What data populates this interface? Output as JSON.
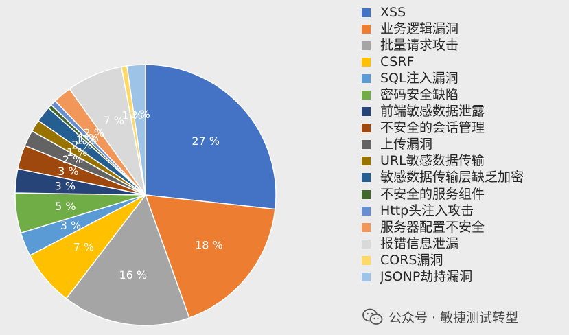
{
  "chart_data": {
    "type": "pie",
    "title": "",
    "legend_position": "right",
    "slices": [
      {
        "label": "XSS",
        "value": 27,
        "data_label": "27 %",
        "color": "#4472c4"
      },
      {
        "label": "业务逻辑漏洞",
        "value": 18,
        "data_label": "18 %",
        "color": "#ed7d31"
      },
      {
        "label": "批量请求攻击",
        "value": 16,
        "data_label": "16 %",
        "color": "#a5a5a5"
      },
      {
        "label": "CSRF",
        "value": 7,
        "data_label": "7 %",
        "color": "#ffc000"
      },
      {
        "label": "SQL注入漏洞",
        "value": 3,
        "data_label": "3 %",
        "color": "#5b9bd5"
      },
      {
        "label": "密码安全缺陷",
        "value": 5,
        "data_label": "5 %",
        "color": "#70ad47"
      },
      {
        "label": "前端敏感数据泄露",
        "value": 3,
        "data_label": "3 %",
        "color": "#264478"
      },
      {
        "label": "不安全的会话管理",
        "value": 3,
        "data_label": "3 %",
        "color": "#9e480e"
      },
      {
        "label": "上传漏洞",
        "value": 2,
        "data_label": "2 %",
        "color": "#636363"
      },
      {
        "label": "URL敏感数据传输",
        "value": 1.5,
        "data_label": "1 %",
        "color": "#997300"
      },
      {
        "label": "敏感数据传输层缺乏加密",
        "value": 2,
        "data_label": "2 %",
        "color": "#255e91"
      },
      {
        "label": "不安全的服务组件",
        "value": 0.5,
        "data_label": "1 %",
        "color": "#43682b"
      },
      {
        "label": "Http头注入攻击",
        "value": 0.7,
        "data_label": "1 %",
        "color": "#698ed0"
      },
      {
        "label": "服务器配置不安全",
        "value": 2.3,
        "data_label": "2 %",
        "color": "#f1975a"
      },
      {
        "label": "报错信息泄漏",
        "value": 7,
        "data_label": "7 %",
        "color": "#d9d9d9"
      },
      {
        "label": "CORS漏洞",
        "value": 0.7,
        "data_label": "1 %",
        "color": "#ffd966"
      },
      {
        "label": "JSONP劫持漏洞",
        "value": 2.3,
        "data_label": "2 %",
        "color": "#9dc3e6"
      }
    ]
  },
  "watermark": {
    "text": "公众号 · 敏捷测试转型",
    "icon": "wechat-icon"
  }
}
